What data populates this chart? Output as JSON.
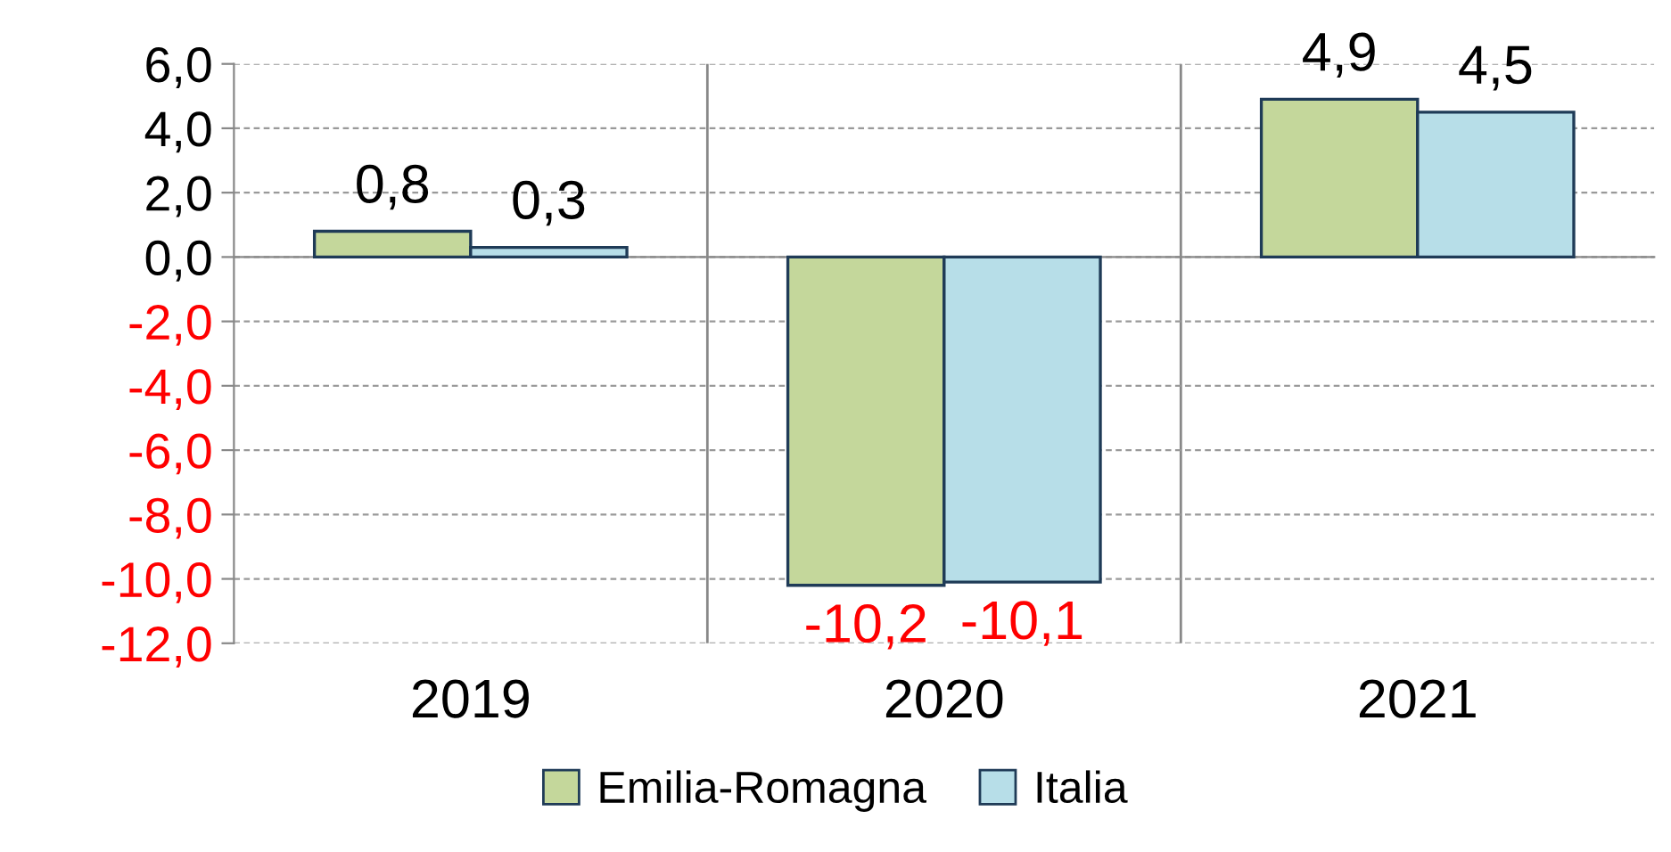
{
  "chart_data": {
    "type": "bar",
    "categories": [
      "2019",
      "2020",
      "2021"
    ],
    "series": [
      {
        "name": "Emilia-Romagna",
        "color": "#c4d79b",
        "values": [
          0.8,
          -10.2,
          4.9
        ],
        "value_labels": [
          "0,8",
          "-10,2",
          "4,9"
        ]
      },
      {
        "name": "Italia",
        "color": "#b7dee8",
        "values": [
          0.3,
          -10.1,
          4.5
        ],
        "value_labels": [
          "0,3",
          "-10,1",
          "4,5"
        ]
      }
    ],
    "ylim": [
      -12,
      6
    ],
    "yticks": [
      {
        "value": -12,
        "label": "-12,0"
      },
      {
        "value": -10,
        "label": "-10,0"
      },
      {
        "value": -8,
        "label": "-8,0"
      },
      {
        "value": -6,
        "label": "-6,0"
      },
      {
        "value": -4,
        "label": "-4,0"
      },
      {
        "value": -2,
        "label": "-2,0"
      },
      {
        "value": 0,
        "label": "0,0"
      },
      {
        "value": 2,
        "label": "2,0"
      },
      {
        "value": 4,
        "label": "4,0"
      },
      {
        "value": 6,
        "label": "6,0"
      }
    ],
    "grid": "y",
    "legend": "bottom"
  }
}
